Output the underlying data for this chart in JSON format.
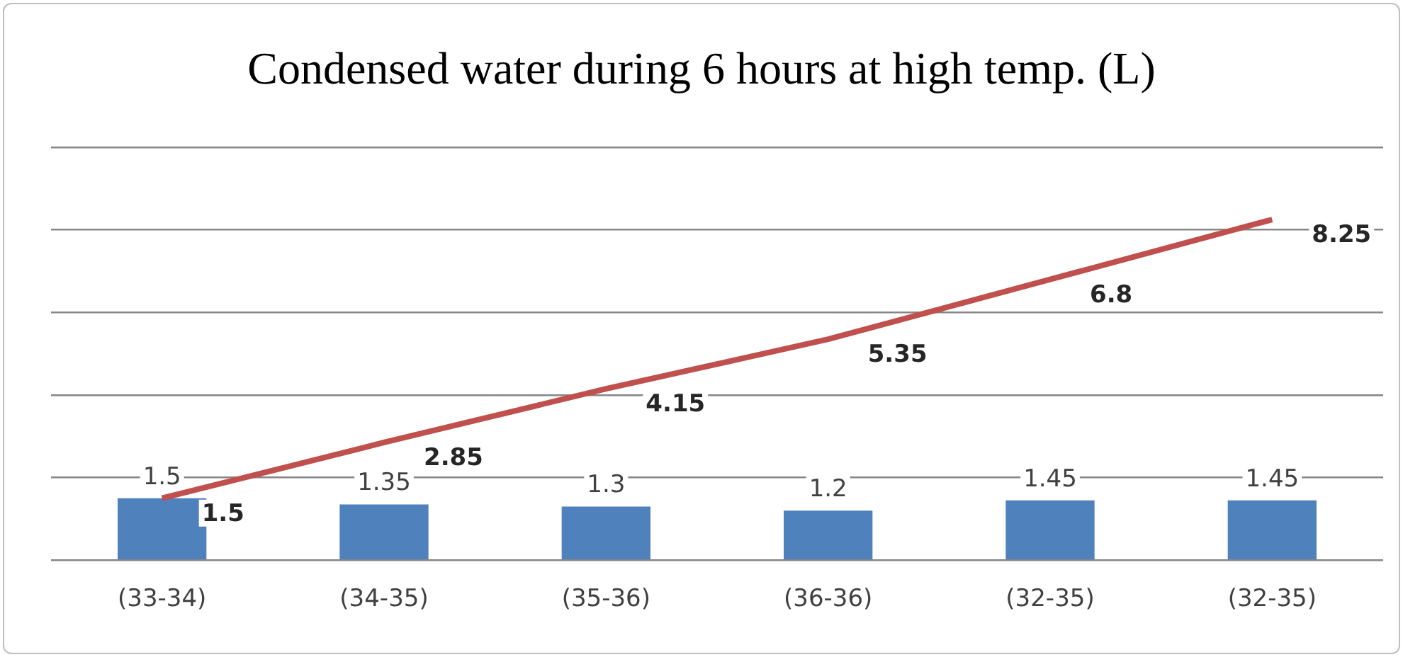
{
  "chart_data": {
    "type": "bar",
    "title": "Condensed water during 6 hours at high temp. (L)",
    "categories": [
      "(33-34)",
      "(34-35)",
      "(35-36)",
      "(36-36)",
      "(32-35)",
      "(32-35)"
    ],
    "series": [
      {
        "color": "#4f81bd",
        "values": [
          1.5,
          1.35,
          1.3,
          1.2,
          1.45,
          1.45
        ]
      },
      {
        "type": "line",
        "color": "#c0504d",
        "values": [
          1.5,
          2.85,
          4.15,
          5.35,
          6.8,
          8.25
        ]
      }
    ],
    "ylim": [
      0,
      10
    ],
    "yticks": [
      {
        "value": 0,
        "label": null
      },
      {
        "value": 2,
        "label": null
      },
      {
        "value": 4,
        "label": null
      },
      {
        "value": 6,
        "label": null
      },
      {
        "value": 8,
        "label": null
      },
      {
        "value": 10,
        "label": null
      }
    ],
    "tick_labels": "x",
    "grid": "y",
    "legend": false,
    "data_labels": true,
    "marker": "none"
  }
}
